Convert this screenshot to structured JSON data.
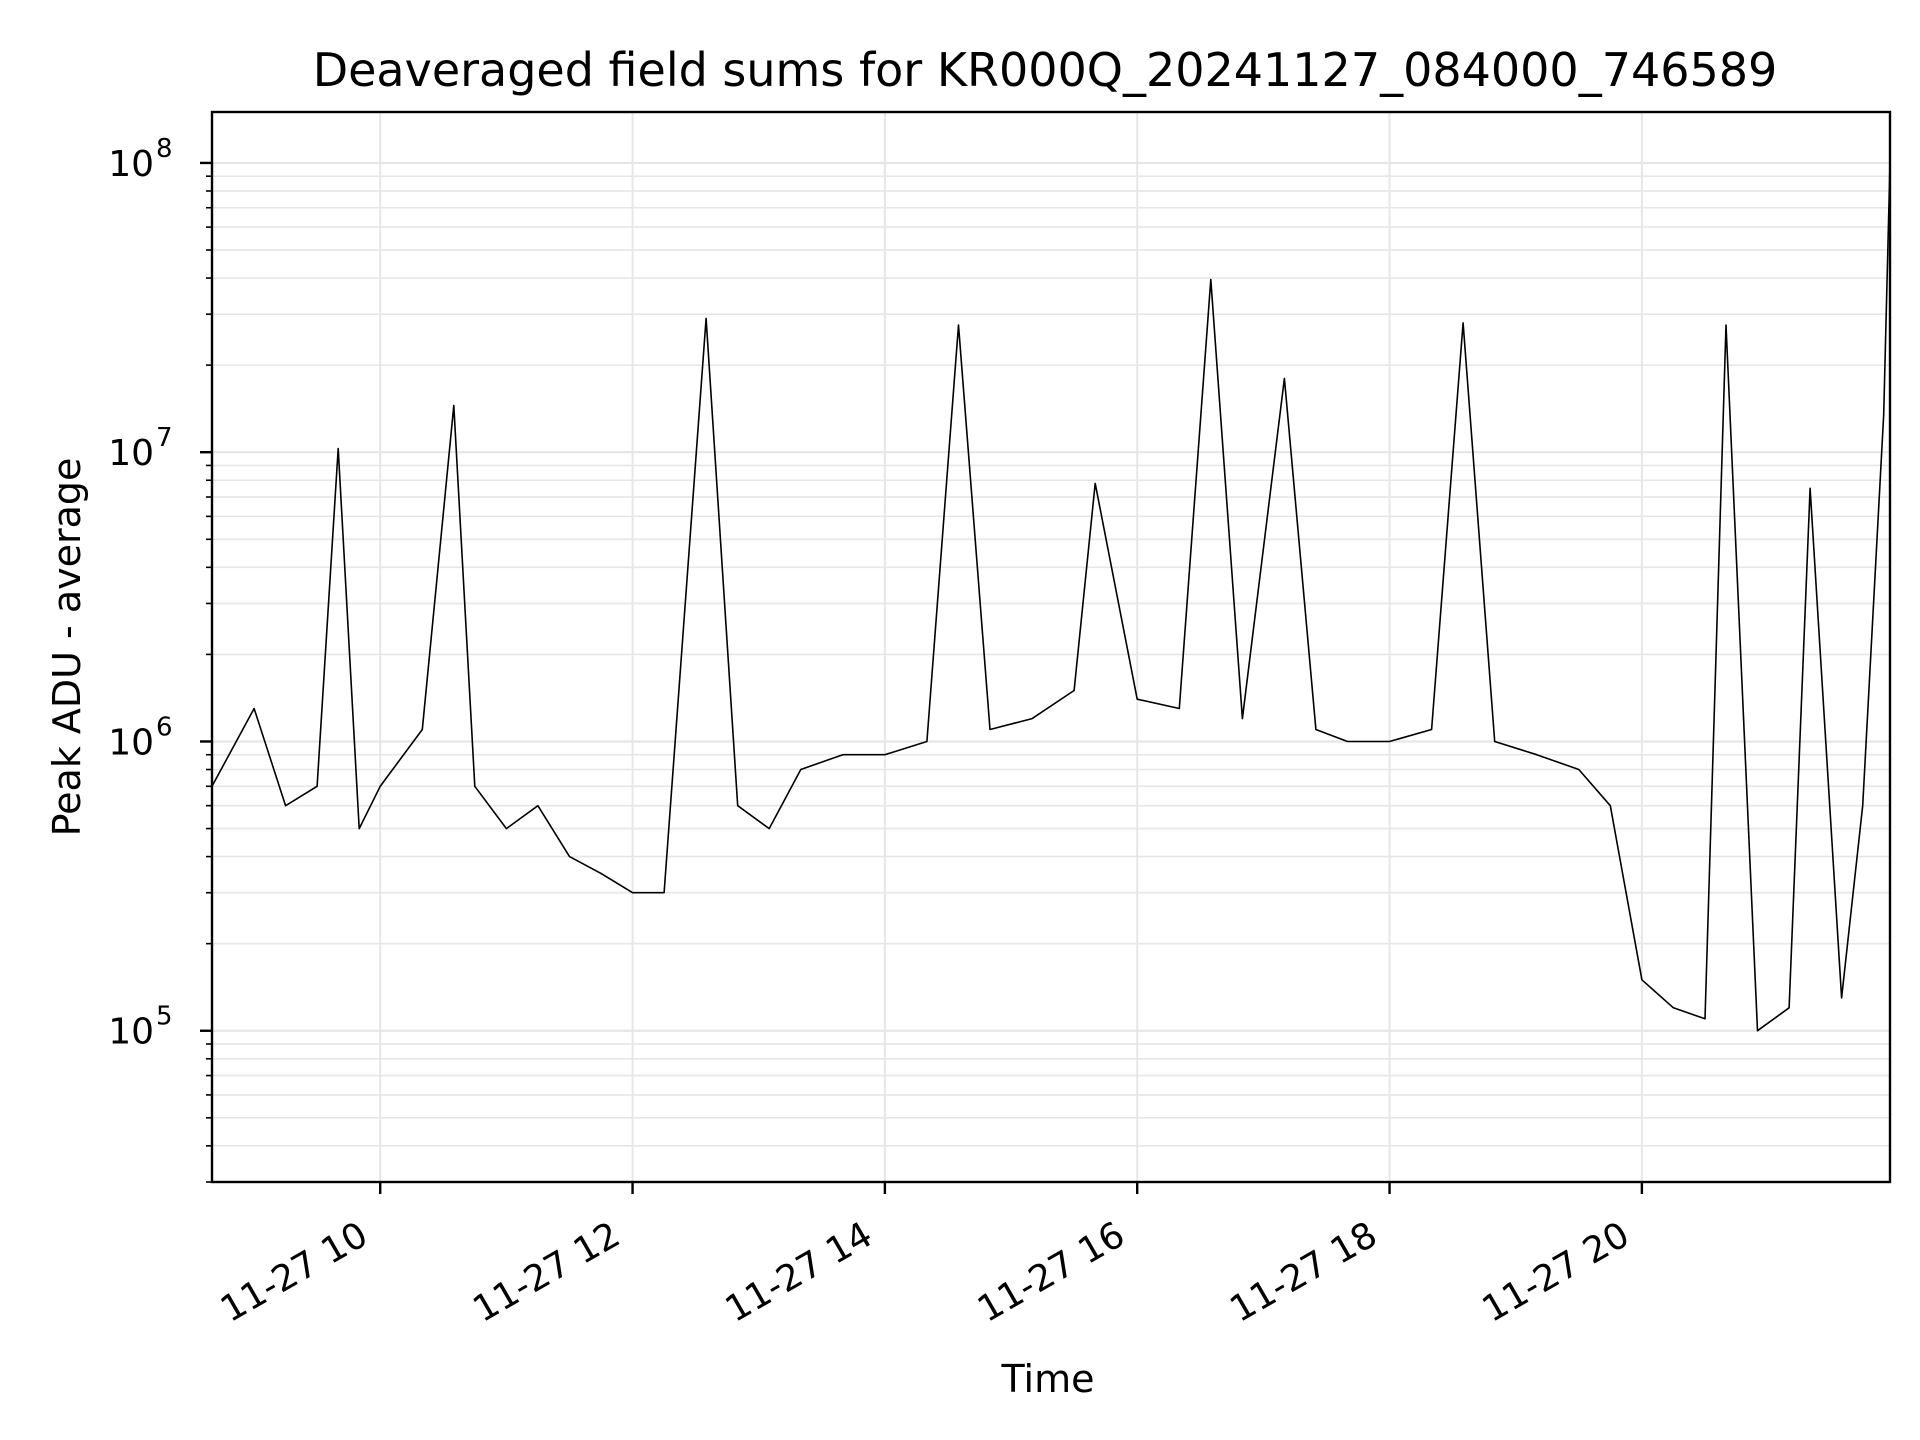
{
  "chart_data": {
    "type": "line",
    "title": "Deaveraged field sums for KR000Q_20241127_084000_746589",
    "xlabel": "Time",
    "ylabel": "Peak ADU - average",
    "x_scale": "time",
    "y_scale": "log",
    "xlim": [
      "2024-11-27 08:40",
      "2024-11-27 21:58"
    ],
    "ylim": [
      30000,
      150000000
    ],
    "grid": true,
    "legend": "none",
    "x_ticks": [
      {
        "value": "2024-11-27 10:00",
        "label": "11-27 10"
      },
      {
        "value": "2024-11-27 12:00",
        "label": "11-27 12"
      },
      {
        "value": "2024-11-27 14:00",
        "label": "11-27 14"
      },
      {
        "value": "2024-11-27 16:00",
        "label": "11-27 16"
      },
      {
        "value": "2024-11-27 18:00",
        "label": "11-27 18"
      },
      {
        "value": "2024-11-27 20:00",
        "label": "11-27 20"
      }
    ],
    "y_ticks": [
      {
        "value": 100000,
        "base": "10",
        "exp": "5"
      },
      {
        "value": 1000000,
        "base": "10",
        "exp": "6"
      },
      {
        "value": 10000000,
        "base": "10",
        "exp": "7"
      },
      {
        "value": 100000000,
        "base": "10",
        "exp": "8"
      }
    ],
    "line_color": "#000000",
    "grid_color": "#e6e6e6",
    "series": [
      {
        "x": [
          "2024-11-27 08:40",
          "2024-11-27 09:00",
          "2024-11-27 09:15",
          "2024-11-27 09:30",
          "2024-11-27 09:40",
          "2024-11-27 09:50",
          "2024-11-27 10:00",
          "2024-11-27 10:20",
          "2024-11-27 10:35",
          "2024-11-27 10:45",
          "2024-11-27 11:00",
          "2024-11-27 11:15",
          "2024-11-27 11:30",
          "2024-11-27 11:45",
          "2024-11-27 12:00",
          "2024-11-27 12:15",
          "2024-11-27 12:35",
          "2024-11-27 12:50",
          "2024-11-27 13:05",
          "2024-11-27 13:20",
          "2024-11-27 13:40",
          "2024-11-27 14:00",
          "2024-11-27 14:20",
          "2024-11-27 14:35",
          "2024-11-27 14:50",
          "2024-11-27 15:10",
          "2024-11-27 15:30",
          "2024-11-27 15:40",
          "2024-11-27 16:00",
          "2024-11-27 16:20",
          "2024-11-27 16:35",
          "2024-11-27 16:50",
          "2024-11-27 17:10",
          "2024-11-27 17:25",
          "2024-11-27 17:40",
          "2024-11-27 18:00",
          "2024-11-27 18:20",
          "2024-11-27 18:35",
          "2024-11-27 18:50",
          "2024-11-27 19:10",
          "2024-11-27 19:30",
          "2024-11-27 19:45",
          "2024-11-27 20:00",
          "2024-11-27 20:15",
          "2024-11-27 20:30",
          "2024-11-27 20:40",
          "2024-11-27 20:55",
          "2024-11-27 21:10",
          "2024-11-27 21:20",
          "2024-11-27 21:35",
          "2024-11-27 21:45",
          "2024-11-27 21:55",
          "2024-11-27 21:58"
        ],
        "y": [
          700000,
          1300000,
          600000,
          700000,
          10300000,
          500000,
          700000,
          1100000,
          14500000,
          700000,
          500000,
          600000,
          400000,
          350000,
          300000,
          300000,
          29000000,
          600000,
          500000,
          800000,
          900000,
          900000,
          1000000,
          27500000,
          1100000,
          1200000,
          1500000,
          7800000,
          1400000,
          1300000,
          39500000,
          1200000,
          18000000,
          1100000,
          1000000,
          1000000,
          1100000,
          28000000,
          1000000,
          900000,
          800000,
          600000,
          150000,
          120000,
          110000,
          27500000,
          100000,
          120000,
          7500000,
          130000,
          600000,
          13500000,
          100000000
        ]
      }
    ]
  }
}
